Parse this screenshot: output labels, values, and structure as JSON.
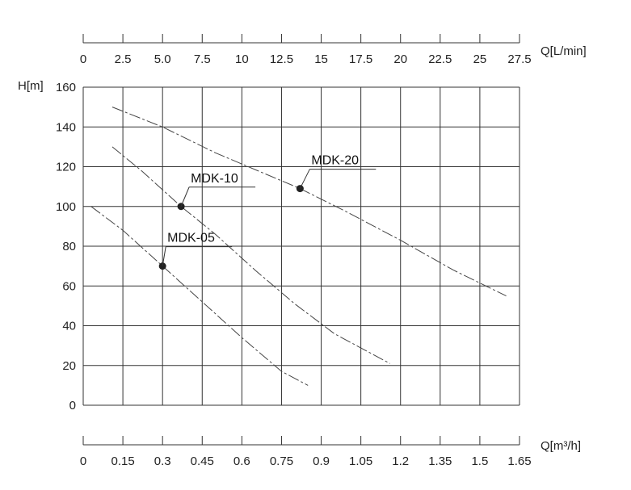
{
  "chart_data": {
    "type": "line",
    "title": "",
    "ylabel": "H[m]",
    "ylim": [
      0,
      160
    ],
    "yticks": [
      0,
      20,
      40,
      60,
      80,
      100,
      120,
      140,
      160
    ],
    "xlabel_bottom": "Q[m³/h]",
    "xlim_bottom": [
      0,
      1.65
    ],
    "xticks_bottom": [
      "0",
      "0.15",
      "0.3",
      "0.45",
      "0.6",
      "0.75",
      "0.9",
      "1.05",
      "1.2",
      "1.35",
      "1.5",
      "1.65"
    ],
    "xlabel_top": "Q[L/min]",
    "xlim_top": [
      0,
      27.5
    ],
    "xticks_top": [
      "0",
      "2.5",
      "5.0",
      "7.5",
      "10",
      "12.5",
      "15",
      "17.5",
      "20",
      "22.5",
      "25",
      "27.5"
    ],
    "grid": true,
    "series": [
      {
        "name": "MDK-05",
        "x": [
          0.03,
          0.15,
          0.3,
          0.45,
          0.6,
          0.75,
          0.85
        ],
        "y": [
          100,
          88,
          70,
          52,
          34,
          17,
          10
        ],
        "marker": {
          "x": 0.3,
          "y": 70
        }
      },
      {
        "name": "MDK-10",
        "x": [
          0.11,
          0.22,
          0.37,
          0.5,
          0.65,
          0.8,
          0.95,
          1.16
        ],
        "y": [
          130,
          118,
          100,
          86,
          68,
          51,
          36,
          21
        ],
        "marker": {
          "x": 0.37,
          "y": 100
        }
      },
      {
        "name": "MDK-20",
        "x": [
          0.11,
          0.3,
          0.5,
          0.82,
          1.0,
          1.2,
          1.4,
          1.6
        ],
        "y": [
          150,
          140,
          127,
          109,
          97,
          83,
          68,
          55
        ],
        "marker": {
          "x": 0.82,
          "y": 109
        }
      }
    ]
  }
}
